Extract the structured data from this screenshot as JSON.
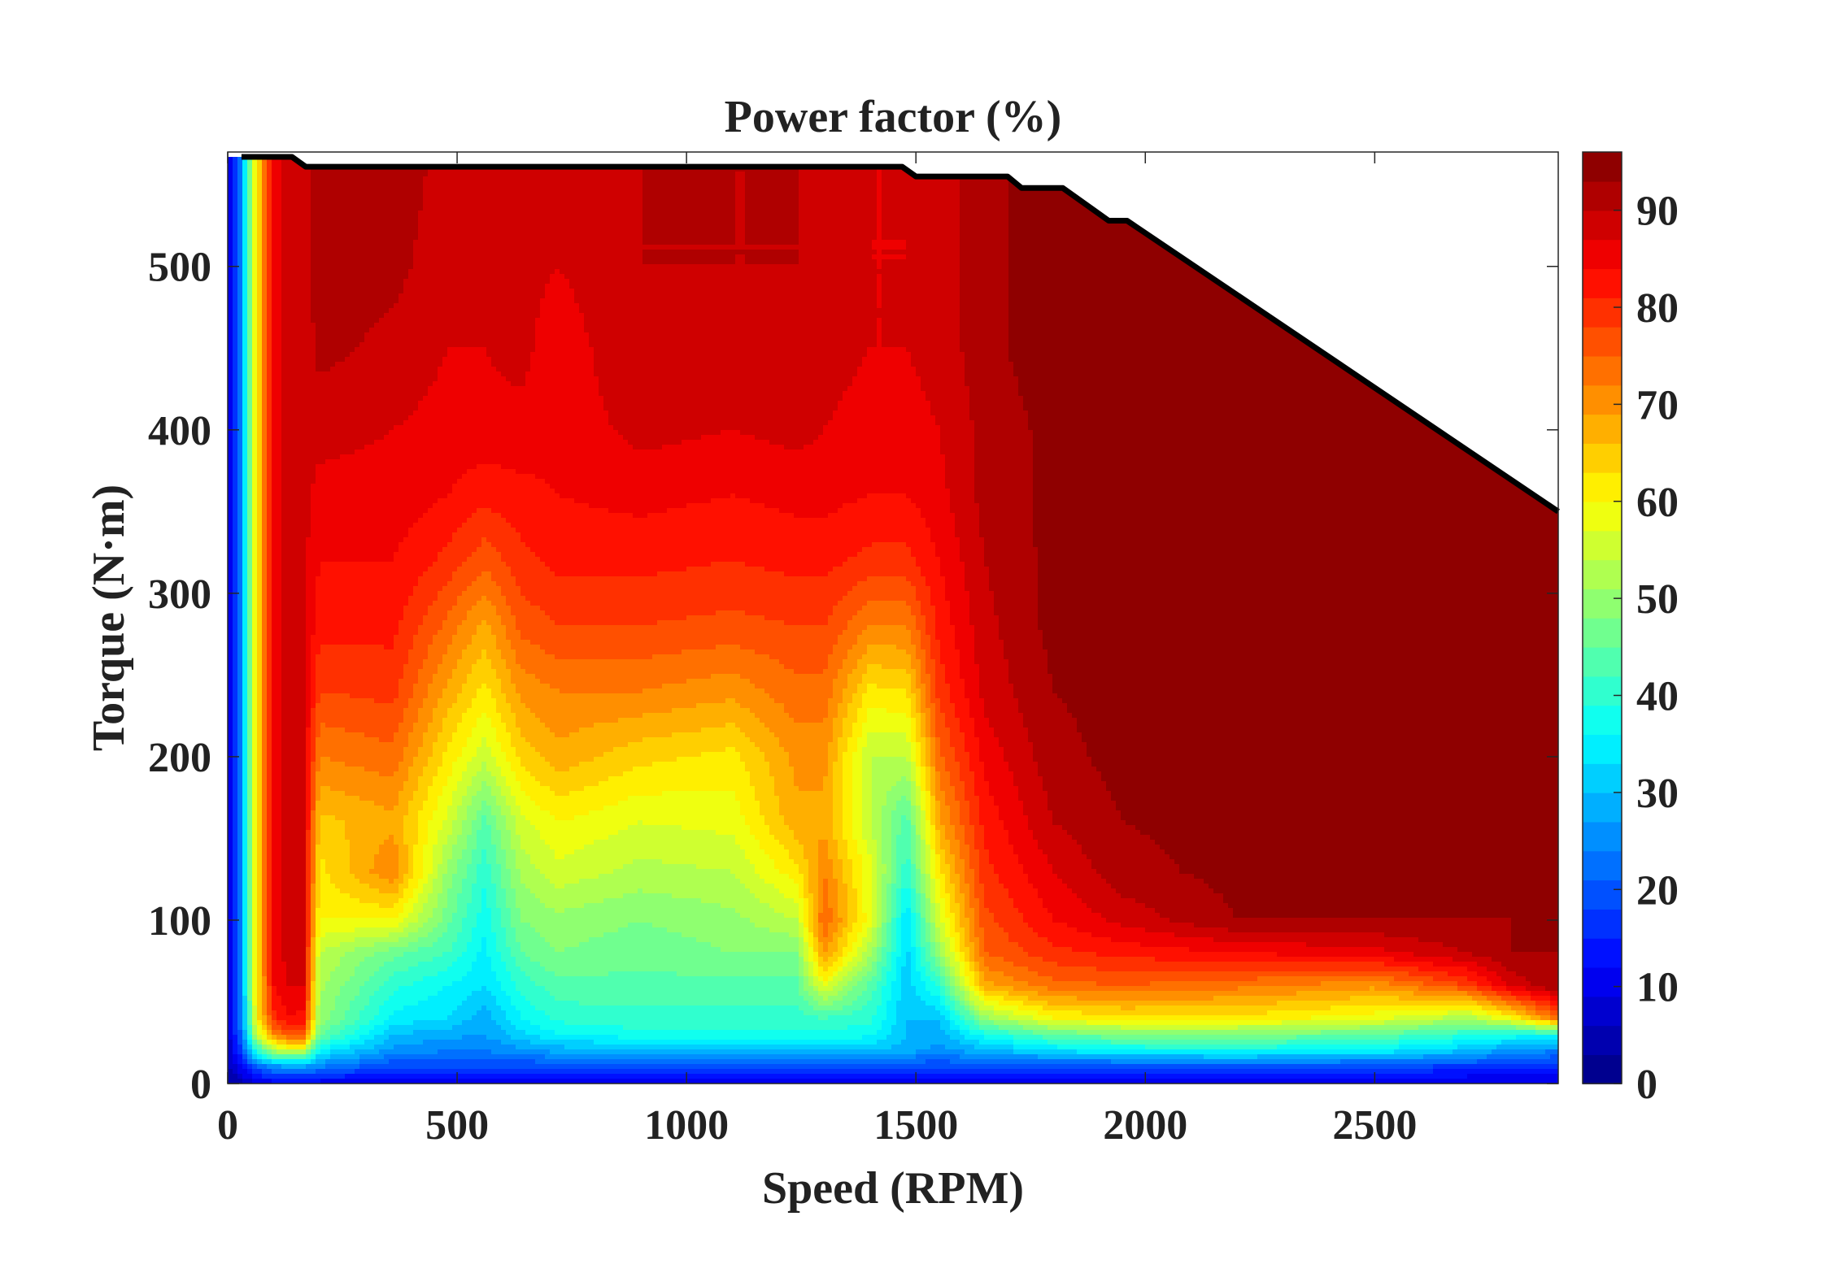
{
  "chart_data": {
    "type": "heatmap",
    "subtype": "filled-contour",
    "title": "Power factor (%)",
    "xlabel": "Speed (RPM)",
    "ylabel": "Torque (N·m)",
    "xlim": [
      0,
      2900
    ],
    "ylim": [
      0,
      570
    ],
    "x_ticks": [
      0,
      500,
      1000,
      1500,
      2000,
      2500
    ],
    "y_ticks": [
      0,
      100,
      200,
      300,
      400,
      500
    ],
    "colorbar": {
      "colormap": "jet",
      "range": [
        0,
        96
      ],
      "ticks": [
        0,
        10,
        20,
        30,
        40,
        50,
        60,
        70,
        80,
        90
      ]
    },
    "max_torque_envelope": {
      "speed": [
        30,
        140,
        170,
        1470,
        1500,
        1700,
        1730,
        1820,
        1920,
        1960,
        2900
      ],
      "torque": [
        567,
        567,
        561,
        561,
        555,
        555,
        548,
        548,
        528,
        528,
        350
      ]
    },
    "grid": {
      "speed": [
        0,
        30,
        60,
        100,
        130,
        165,
        200,
        360,
        480,
        560,
        640,
        720,
        900,
        1100,
        1240,
        1300,
        1400,
        1480,
        1550,
        1650,
        1800,
        1950,
        2200,
        2500,
        2700,
        2800,
        2900
      ],
      "torque": [
        0,
        10,
        20,
        30,
        40,
        60,
        80,
        100,
        130,
        160,
        200,
        240,
        280,
        320,
        360,
        400,
        450,
        500,
        570
      ],
      "power_factor": [
        [
          2,
          5,
          8,
          10,
          10,
          10,
          10,
          8,
          8,
          8,
          8,
          8,
          8,
          8,
          8,
          8,
          8,
          8,
          8,
          8,
          8,
          8,
          8,
          8,
          8,
          8,
          8
        ],
        [
          5,
          12,
          20,
          25,
          26,
          26,
          24,
          18,
          18,
          18,
          18,
          18,
          18,
          18,
          18,
          18,
          18,
          18,
          18,
          18,
          18,
          18,
          18,
          18,
          17,
          16,
          15
        ],
        [
          6,
          18,
          38,
          52,
          55,
          55,
          35,
          26,
          24,
          24,
          26,
          28,
          29,
          30,
          30,
          30,
          30,
          28,
          26,
          29,
          33,
          36,
          37,
          35,
          30,
          26,
          24
        ],
        [
          7,
          22,
          52,
          72,
          76,
          76,
          46,
          30,
          28,
          27,
          32,
          36,
          38,
          38,
          38,
          38,
          37,
          30,
          28,
          38,
          45,
          48,
          48,
          45,
          40,
          38,
          38
        ],
        [
          8,
          24,
          58,
          80,
          84,
          83,
          50,
          35,
          33,
          28,
          36,
          40,
          41,
          41,
          41,
          42,
          40,
          30,
          30,
          50,
          60,
          62,
          62,
          58,
          52,
          60,
          75
        ],
        [
          8,
          25,
          60,
          84,
          87,
          87,
          52,
          40,
          36,
          33,
          40,
          44,
          44,
          44,
          44,
          58,
          44,
          31,
          40,
          68,
          74,
          75,
          73,
          70,
          78,
          88,
          93
        ],
        [
          8,
          25,
          60,
          85,
          88,
          88,
          54,
          46,
          42,
          35,
          45,
          48,
          46,
          48,
          48,
          70,
          52,
          32,
          50,
          75,
          80,
          82,
          84,
          86,
          90,
          93,
          93
        ],
        [
          8,
          25,
          60,
          85,
          88,
          88,
          60,
          60,
          46,
          37,
          48,
          50,
          48,
          50,
          54,
          75,
          58,
          33,
          56,
          77,
          84,
          88,
          93,
          93,
          93,
          93,
          93
        ],
        [
          8,
          25,
          60,
          85,
          88,
          88,
          62,
          72,
          50,
          40,
          52,
          56,
          53,
          54,
          62,
          72,
          58,
          40,
          62,
          80,
          87,
          92,
          94,
          94,
          93,
          93,
          93
        ],
        [
          8,
          25,
          60,
          85,
          88,
          88,
          65,
          68,
          56,
          44,
          56,
          60,
          57,
          58,
          68,
          68,
          54,
          43,
          68,
          82,
          90,
          93,
          94,
          94,
          93,
          93,
          93
        ],
        [
          8,
          25,
          60,
          85,
          88,
          88,
          72,
          74,
          62,
          55,
          64,
          68,
          64,
          62,
          70,
          70,
          54,
          54,
          74,
          85,
          92,
          94,
          94,
          94,
          93,
          93,
          93
        ],
        [
          8,
          25,
          60,
          85,
          88,
          88,
          78,
          79,
          68,
          62,
          70,
          72,
          72,
          70,
          74,
          74,
          62,
          63,
          79,
          88,
          93,
          94,
          94,
          94,
          93,
          93,
          93
        ],
        [
          8,
          25,
          60,
          85,
          88,
          88,
          82,
          82,
          74,
          68,
          76,
          78,
          78,
          77,
          78,
          78,
          72,
          72,
          82,
          89,
          94,
          94,
          94,
          94,
          93,
          93,
          93
        ],
        [
          8,
          25,
          60,
          85,
          88,
          88,
          84,
          84,
          80,
          76,
          80,
          82,
          82,
          81,
          82,
          82,
          80,
          80,
          84,
          90,
          94,
          94,
          94,
          94,
          93,
          93,
          93
        ],
        [
          8,
          25,
          60,
          85,
          88,
          88,
          86,
          86,
          84,
          82,
          83,
          84,
          85,
          84,
          85,
          85,
          84,
          84,
          86,
          91,
          94,
          94,
          94,
          94,
          93,
          93,
          93
        ],
        [
          8,
          25,
          60,
          85,
          88,
          88,
          88,
          87,
          86,
          86,
          86,
          85,
          88,
          87,
          88,
          87,
          86,
          86,
          87,
          91,
          94,
          94,
          94,
          94,
          93,
          93,
          93
        ],
        [
          8,
          25,
          60,
          85,
          88,
          88,
          91,
          89,
          87,
          87,
          88,
          85,
          90,
          89,
          90,
          88,
          87,
          87,
          88,
          92,
          95,
          95,
          94,
          94,
          93,
          93,
          93
        ],
        [
          8,
          25,
          60,
          85,
          88,
          88,
          92,
          91,
          88,
          88,
          88,
          87,
          90,
          90,
          90,
          88,
          87,
          87,
          88,
          92,
          95,
          95,
          94,
          94,
          93,
          93,
          93
        ],
        [
          8,
          25,
          60,
          85,
          88,
          88,
          93,
          92,
          89,
          89,
          88,
          88,
          90,
          90,
          90,
          88,
          87,
          87,
          88,
          92,
          95,
          95,
          94,
          94,
          93,
          93,
          93
        ]
      ]
    }
  }
}
